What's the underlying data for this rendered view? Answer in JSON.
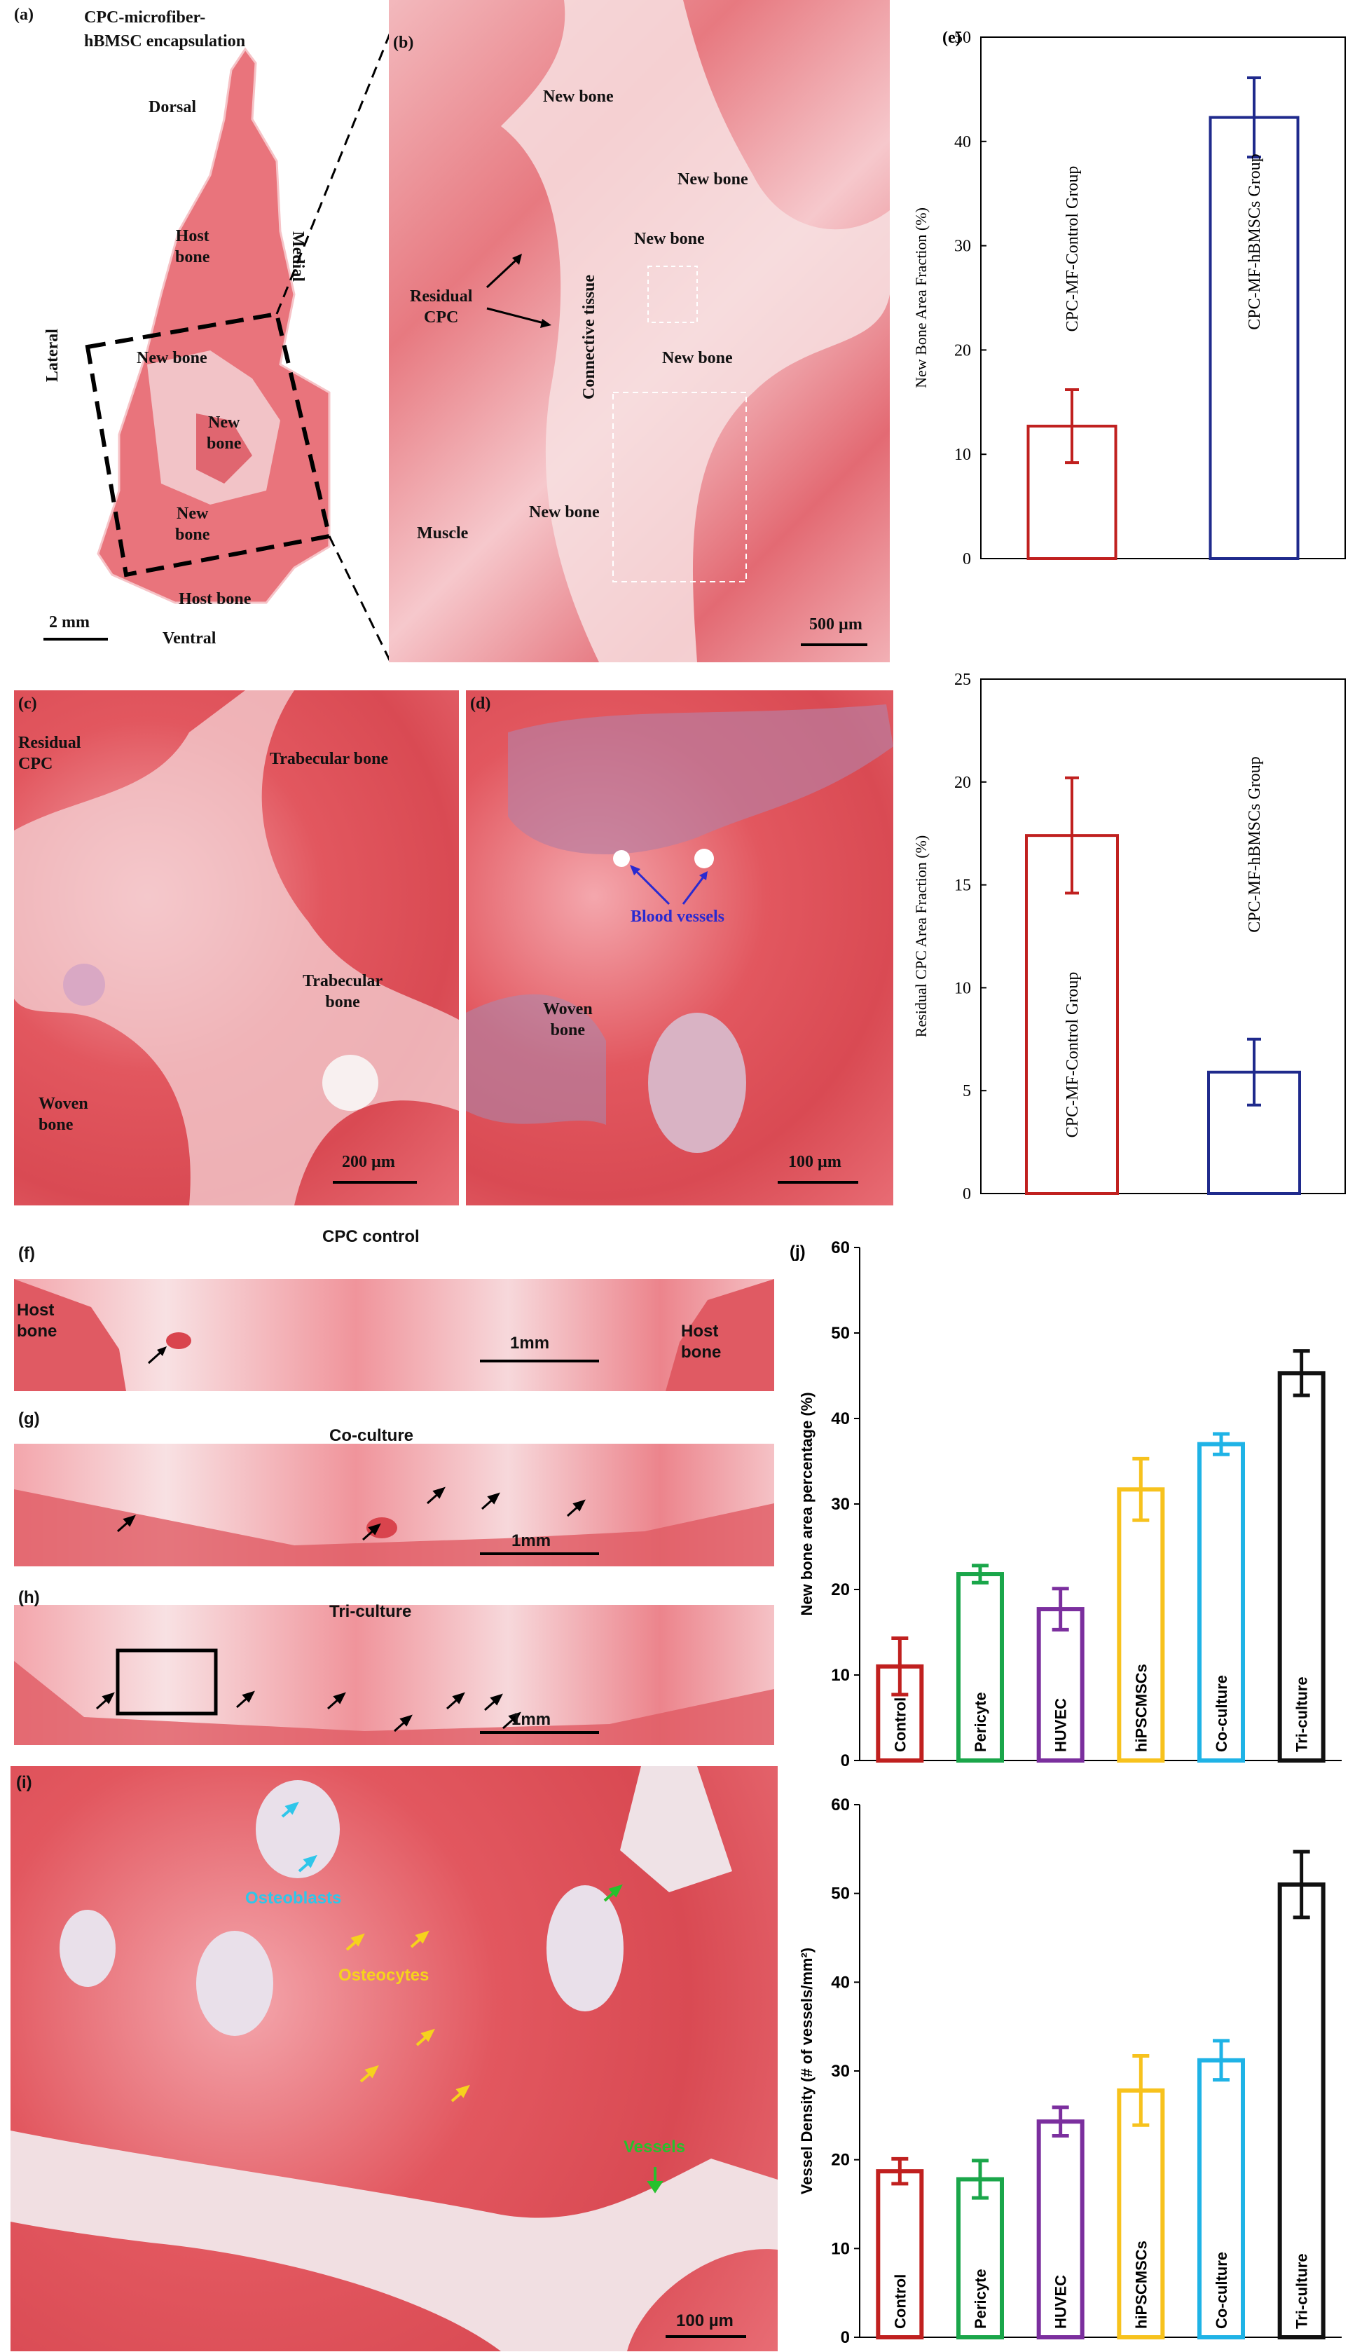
{
  "images": {
    "a": {
      "letter": "(a)",
      "title": "CPC-microfiber-\nhBMSC encapsulation",
      "dorsal": "Dorsal",
      "ventral": "Ventral",
      "lateral": "Lateral",
      "medial": "Medial",
      "host_bone_top": "Host\nbone",
      "host_bone_bottom": "Host bone",
      "new_bone_1": "New bone",
      "new_bone_2": "New\nbone",
      "new_bone_3": "New\nbone",
      "scale": "2 mm"
    },
    "b": {
      "letter": "(b)",
      "new_bone_top": "New bone",
      "new_bone_2": "New bone",
      "new_bone_3": "New bone",
      "new_bone_4": "New bone",
      "new_bone_5": "New bone",
      "residual_cpc": "Residual\nCPC",
      "connective": "Connective tissue",
      "muscle": "Muscle",
      "scale": "500  µm"
    },
    "c": {
      "letter": "(c)",
      "residual_cpc": "Residual\nCPC",
      "trabecular_1": "Trabecular bone",
      "trabecular_2": "Trabecular\nbone",
      "woven": "Woven\nbone",
      "scale": "200 µm"
    },
    "d": {
      "letter": "(d)",
      "blood_vessels": "Blood vessels",
      "woven": "Woven\nbone",
      "scale": "100 µm"
    },
    "f": {
      "letter": "(f)",
      "title": "CPC control",
      "host_left": "Host\nbone",
      "host_right": "Host\nbone",
      "scale": "1mm"
    },
    "g": {
      "letter": "(g)",
      "title": "Co-culture",
      "scale": "1mm"
    },
    "h": {
      "letter": "(h)",
      "title": "Tri-culture",
      "scale": "1mm"
    },
    "i": {
      "letter": "(i)",
      "osteoblasts": "Osteoblasts",
      "osteocytes": "Osteocytes",
      "vessels": "Vessels",
      "scale": "100 µm"
    }
  },
  "chart_data": [
    {
      "id": "e",
      "type": "bar",
      "letter": "(e)",
      "ylabel": "New Bone Area Fraction (%)",
      "ylim": [
        0,
        50
      ],
      "yticks": [
        0,
        10,
        20,
        30,
        40,
        50
      ],
      "categories": [
        "CPC-MF-Control Group",
        "CPC-MF-hBMSCs Group"
      ],
      "values": [
        12.7,
        42.3
      ],
      "errors": [
        3.5,
        3.8
      ],
      "colors": [
        "#c0201f",
        "#1f2a8c"
      ]
    },
    {
      "id": "residual",
      "type": "bar",
      "letter": "",
      "ylabel": "Residual CPC Area Fraction (%)",
      "ylim": [
        0,
        25
      ],
      "yticks": [
        0,
        5,
        10,
        15,
        20,
        25
      ],
      "categories": [
        "CPC-MF-Control Group",
        "CPC-MF-hBMSCs Group"
      ],
      "values": [
        17.4,
        5.9
      ],
      "errors": [
        2.8,
        1.6
      ],
      "colors": [
        "#c0201f",
        "#1f2a8c"
      ]
    },
    {
      "id": "j",
      "type": "bar",
      "letter": "(j)",
      "ylabel": "New bone area percentage (%)",
      "ylim": [
        0,
        60
      ],
      "yticks": [
        0,
        10,
        20,
        30,
        40,
        50,
        60
      ],
      "categories": [
        "Control",
        "Pericyte",
        "HUVEC",
        "hiPSCMSCs",
        "Co-culture",
        "Tri-culture"
      ],
      "values": [
        11,
        21.8,
        17.7,
        31.7,
        37,
        45.3
      ],
      "errors": [
        3.3,
        1,
        2.4,
        3.6,
        1.2,
        2.6
      ],
      "colors": [
        "#c0201f",
        "#1aa64a",
        "#7b2f9e",
        "#f7c21d",
        "#1fb3e6",
        "#111111"
      ]
    },
    {
      "id": "k",
      "type": "bar",
      "letter": "",
      "ylabel": "Vessel Density (# of vessels/mm²)",
      "ylim": [
        0,
        60
      ],
      "yticks": [
        0,
        10,
        20,
        30,
        40,
        50,
        60
      ],
      "categories": [
        "Control",
        "Pericyte",
        "HUVEC",
        "hiPSCMSCs",
        "Co-culture",
        "Tri-culture"
      ],
      "values": [
        18.7,
        17.8,
        24.3,
        27.8,
        31.2,
        51
      ],
      "errors": [
        1.4,
        2.1,
        1.6,
        3.9,
        2.2,
        3.7
      ],
      "colors": [
        "#c0201f",
        "#1aa64a",
        "#7b2f9e",
        "#f7c21d",
        "#1fb3e6",
        "#111111"
      ]
    }
  ]
}
